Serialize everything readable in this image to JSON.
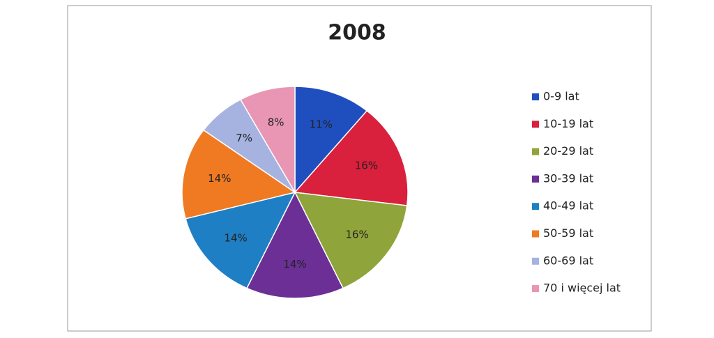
{
  "chart_data": {
    "type": "pie",
    "title": "2008",
    "categories": [
      "0-9 lat",
      "10-19 lat",
      "20-29 lat",
      "30-39 lat",
      "40-49 lat",
      "50-59 lat",
      "60-69 lat",
      "70 i więcej lat"
    ],
    "values": [
      11,
      16,
      16,
      14,
      14,
      14,
      7,
      8
    ],
    "value_labels": [
      "11%",
      "16%",
      "16%",
      "14%",
      "14%",
      "14%",
      "7%",
      "8%"
    ],
    "colors": [
      "#1f4fbf",
      "#d9203c",
      "#8fa43a",
      "#6b2f96",
      "#1f7fc4",
      "#f07a22",
      "#a6b3e0",
      "#e896b4"
    ],
    "legend": "right"
  }
}
